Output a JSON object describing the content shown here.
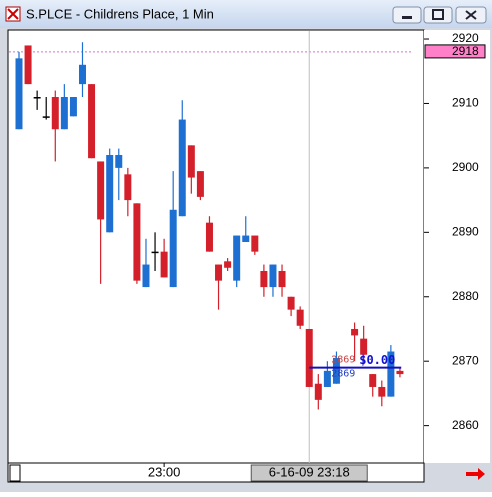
{
  "chart_data": {
    "type": "candlestick",
    "title": "S.PLCE - Childrens Place, 1 Min",
    "categories": [
      null,
      null,
      null,
      null,
      null,
      null,
      null,
      null,
      null,
      null,
      null,
      null,
      null,
      null,
      null,
      null,
      "23:00",
      null,
      null,
      null,
      null,
      null,
      null,
      null,
      null,
      null,
      null,
      null,
      null,
      null,
      null,
      null,
      "6-16-09 23:18",
      null,
      null,
      null,
      null,
      null,
      null,
      null,
      null,
      null,
      null
    ],
    "cursor_index": 32,
    "open": [
      2906,
      2919,
      2911,
      2908,
      2911,
      2906,
      2908,
      2913,
      2913,
      2901,
      2890,
      2900,
      2899,
      2894.5,
      2881.5,
      2887,
      2887,
      2881.5,
      2892.5,
      2903.5,
      2899.5,
      2891.5,
      2885,
      2885.5,
      2882.5,
      2888.5,
      2889.5,
      2884,
      2881.5,
      2884,
      2880,
      2878,
      2875,
      2866.5,
      2866,
      2866.5,
      null,
      2875,
      2873.5,
      2868,
      2866,
      2864.5,
      2868.5
    ],
    "high": [
      2918,
      2919,
      2912,
      2911,
      2912,
      2913,
      2911,
      2919.5,
      2913,
      2901,
      2903,
      2903,
      2900,
      2894.5,
      2889,
      2890,
      2889,
      2899.5,
      2910.5,
      2903.5,
      2899.5,
      2892.5,
      2885,
      2886,
      2889.5,
      2892.5,
      2889.5,
      2885,
      2885,
      2885,
      2880,
      2878.5,
      2875,
      2868,
      2870,
      2871.5,
      null,
      2876,
      2875.5,
      2868,
      2867,
      2872.5,
      2869
    ],
    "low": [
      2906,
      2913,
      2909,
      2907.5,
      2901,
      2906,
      2908,
      2911,
      2901.5,
      2882,
      2890,
      2895,
      2892.5,
      2882,
      2881.5,
      2884,
      2883,
      2881.5,
      2892.5,
      2896,
      2895,
      2887,
      2878,
      2884,
      2881.5,
      2888.5,
      2886.5,
      2880,
      2880,
      2880,
      2877,
      2875,
      2866,
      2862.5,
      2866,
      2866.5,
      null,
      2870,
      2869.5,
      2864.5,
      2863,
      2864.5,
      2867.5
    ],
    "close": [
      2917,
      2913,
      2911,
      2908,
      2906,
      2911,
      2911,
      2916,
      2901.5,
      2892,
      2902,
      2902,
      2895,
      2882.5,
      2885,
      2887,
      2883,
      2893.5,
      2907.5,
      2898.5,
      2895.5,
      2887,
      2882.5,
      2884.5,
      2889.5,
      2889.5,
      2887,
      2881.5,
      2885,
      2881.5,
      2878,
      2875.5,
      2866,
      2864,
      2868.5,
      2870.5,
      null,
      2874,
      2871,
      2866,
      2864.5,
      2871.5,
      2868
    ],
    "up_color": "#1e6fd2",
    "down_color": "#d4202a",
    "ylim": [
      2854.2,
      2921.4
    ],
    "yticks": [
      2860,
      2870,
      2880,
      2890,
      2900,
      2910,
      2920
    ],
    "current_price": 2918,
    "order": {
      "bid": 2869,
      "ask": 2869,
      "pnl": "$0.00"
    }
  }
}
